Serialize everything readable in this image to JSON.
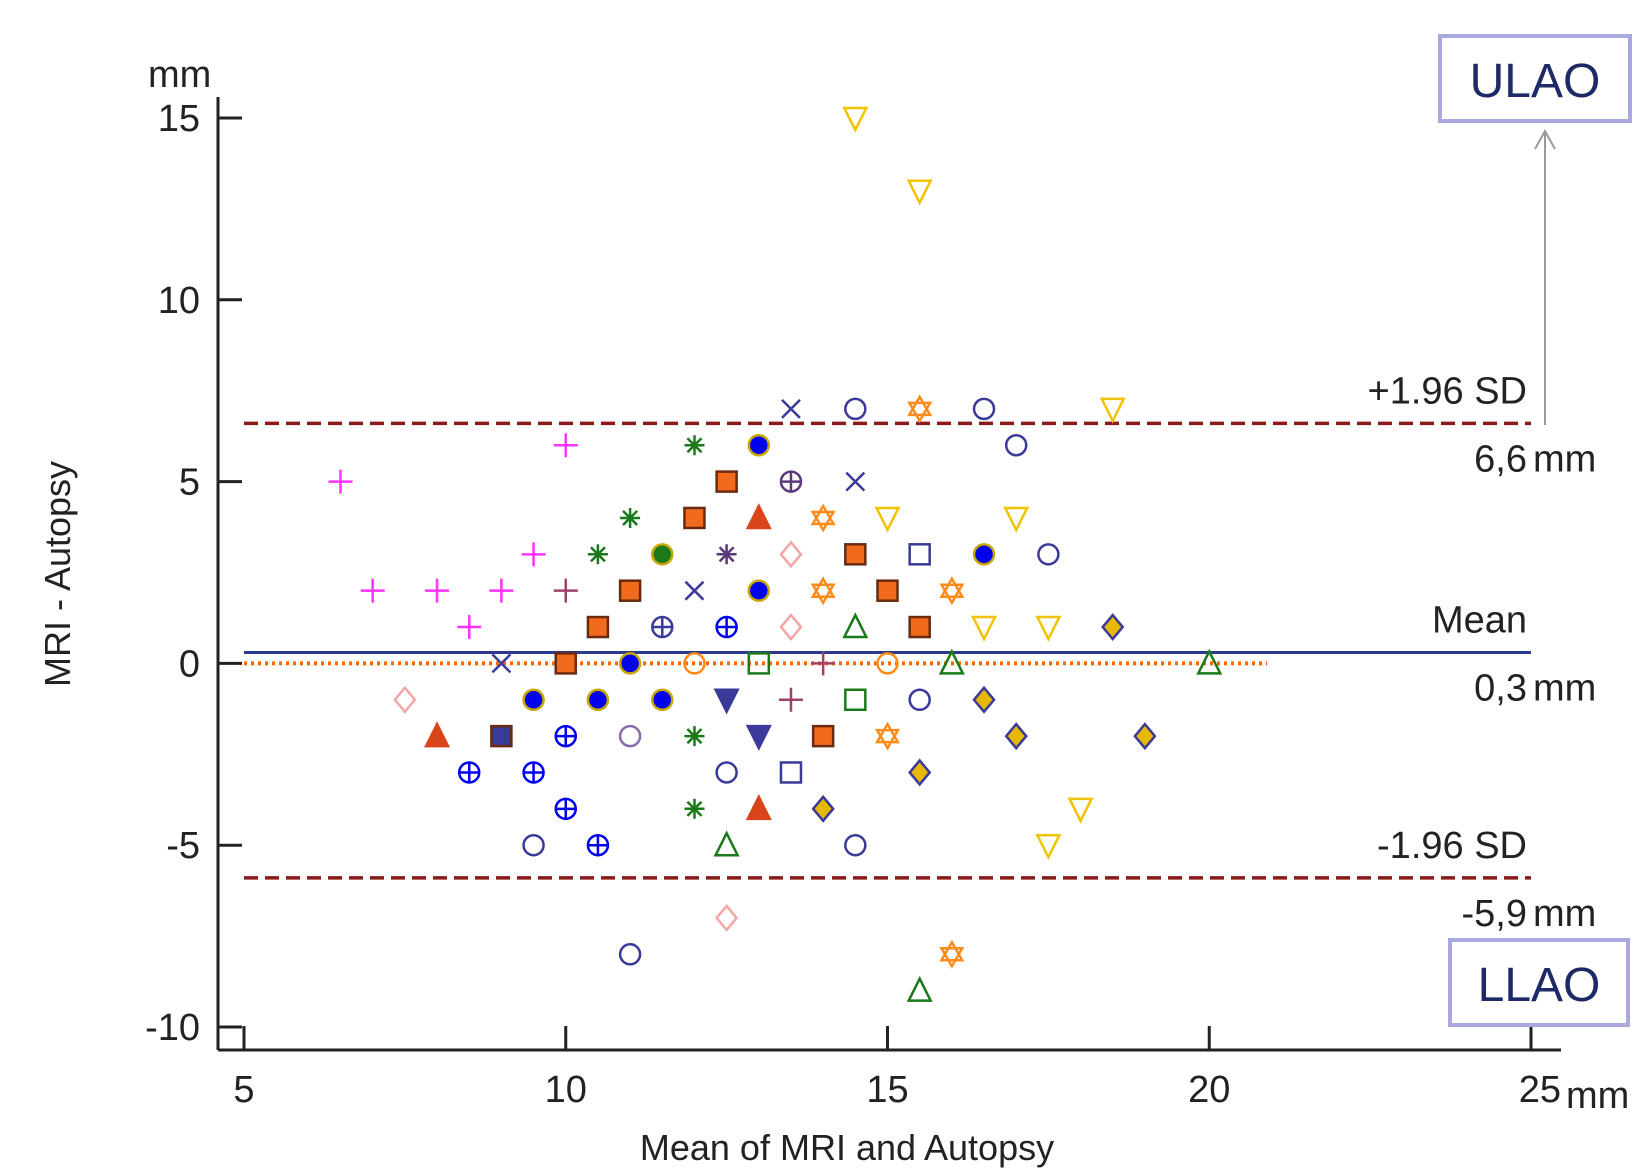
{
  "chart_data": {
    "type": "scatter",
    "title": "",
    "xlabel": "Mean of MRI and Autopsy",
    "ylabel": "MRI - Autopsy",
    "x_unit": "mm",
    "y_unit": "mm",
    "xlim": [
      5,
      25
    ],
    "ylim": [
      -10,
      15
    ],
    "x_ticks": [
      "5",
      "10",
      "15",
      "20",
      "25"
    ],
    "y_ticks": [
      "15",
      "10",
      "5",
      "0",
      "-5",
      "-10"
    ],
    "grid": false,
    "reference_lines": [
      {
        "name": "+1.96 SD",
        "value": 6.6,
        "value_label": "6,6",
        "unit": "mm",
        "style": "dashed",
        "color": "#8b1a1a"
      },
      {
        "name": "Mean",
        "value": 0.3,
        "value_label": "0,3",
        "unit": "mm",
        "style": "solid",
        "color": "#2b3a8c"
      },
      {
        "name": "-1.96 SD",
        "value": -5.9,
        "value_label": "-5,9",
        "unit": "mm",
        "style": "dashed",
        "color": "#8b1a1a"
      },
      {
        "name": "",
        "value": 0,
        "value_label": "",
        "unit": "",
        "style": "dotted",
        "color": "#ff6600"
      }
    ],
    "annotations": [
      {
        "text": "ULAO",
        "color": "#1d2a66",
        "border": "#a9a9e0"
      },
      {
        "text": "LLAO",
        "color": "#1d2a66",
        "border": "#a9a9e0"
      }
    ],
    "points": [
      {
        "x": 14.5,
        "y": 15,
        "marker": "triangle-down",
        "color": "#f2c300",
        "filled": false
      },
      {
        "x": 15.5,
        "y": 13,
        "marker": "triangle-down",
        "color": "#f2c300",
        "filled": false
      },
      {
        "x": 13.5,
        "y": 7,
        "marker": "x",
        "color": "#3a3a9a",
        "filled": false
      },
      {
        "x": 14.5,
        "y": 7,
        "marker": "circle",
        "color": "#3a3a9a",
        "filled": false
      },
      {
        "x": 15.5,
        "y": 7,
        "marker": "star",
        "color": "#ff8c1a",
        "filled": false
      },
      {
        "x": 16.5,
        "y": 7,
        "marker": "circle",
        "color": "#3a3a9a",
        "filled": false
      },
      {
        "x": 18.5,
        "y": 7,
        "marker": "triangle-down",
        "color": "#f2c300",
        "filled": false
      },
      {
        "x": 10,
        "y": 6,
        "marker": "plus",
        "color": "#ff33ff",
        "filled": false
      },
      {
        "x": 12,
        "y": 6,
        "marker": "asterisk",
        "color": "#1a7a1a",
        "filled": false
      },
      {
        "x": 13,
        "y": 6,
        "marker": "circle",
        "color": "#0000ee",
        "filled": true
      },
      {
        "x": 17,
        "y": 6,
        "marker": "circle",
        "color": "#3a3a9a",
        "filled": false
      },
      {
        "x": 6.5,
        "y": 5,
        "marker": "plus",
        "color": "#ff33ff",
        "filled": false
      },
      {
        "x": 12.5,
        "y": 5,
        "marker": "square",
        "color": "#f26b1d",
        "filled": true
      },
      {
        "x": 13.5,
        "y": 5,
        "marker": "circle-plus",
        "color": "#5a3a7a",
        "filled": false
      },
      {
        "x": 14.5,
        "y": 5,
        "marker": "x",
        "color": "#3a3a9a",
        "filled": false
      },
      {
        "x": 11,
        "y": 4,
        "marker": "asterisk",
        "color": "#1a7a1a",
        "filled": false
      },
      {
        "x": 12,
        "y": 4,
        "marker": "square",
        "color": "#f26b1d",
        "filled": true
      },
      {
        "x": 13,
        "y": 4,
        "marker": "triangle",
        "color": "#d9441a",
        "filled": true
      },
      {
        "x": 14,
        "y": 4,
        "marker": "star",
        "color": "#ff8c1a",
        "filled": false
      },
      {
        "x": 15,
        "y": 4,
        "marker": "triangle-down",
        "color": "#f2c300",
        "filled": false
      },
      {
        "x": 17,
        "y": 4,
        "marker": "triangle-down",
        "color": "#f2c300",
        "filled": false
      },
      {
        "x": 9.5,
        "y": 3,
        "marker": "plus",
        "color": "#ff33ff",
        "filled": false
      },
      {
        "x": 10.5,
        "y": 3,
        "marker": "asterisk",
        "color": "#1a7a1a",
        "filled": false
      },
      {
        "x": 11.5,
        "y": 3,
        "marker": "circle",
        "color": "#1a7a1a",
        "filled": true
      },
      {
        "x": 12.5,
        "y": 3,
        "marker": "asterisk",
        "color": "#5a3a7a",
        "filled": false
      },
      {
        "x": 13.5,
        "y": 3,
        "marker": "diamond",
        "color": "#f4a6a6",
        "filled": false
      },
      {
        "x": 14.5,
        "y": 3,
        "marker": "square",
        "color": "#f26b1d",
        "filled": true
      },
      {
        "x": 15.5,
        "y": 3,
        "marker": "square",
        "color": "#3a3a9a",
        "filled": false
      },
      {
        "x": 16.5,
        "y": 3,
        "marker": "circle",
        "color": "#0000ee",
        "filled": true
      },
      {
        "x": 17.5,
        "y": 3,
        "marker": "circle",
        "color": "#3a3a9a",
        "filled": false
      },
      {
        "x": 7,
        "y": 2,
        "marker": "plus",
        "color": "#ff33ff",
        "filled": false
      },
      {
        "x": 8,
        "y": 2,
        "marker": "plus",
        "color": "#ff33ff",
        "filled": false
      },
      {
        "x": 9,
        "y": 2,
        "marker": "plus",
        "color": "#ff33ff",
        "filled": false
      },
      {
        "x": 10,
        "y": 2,
        "marker": "plus",
        "color": "#a0406a",
        "filled": false
      },
      {
        "x": 11,
        "y": 2,
        "marker": "square",
        "color": "#f26b1d",
        "filled": true
      },
      {
        "x": 12,
        "y": 2,
        "marker": "x",
        "color": "#3a3a9a",
        "filled": false
      },
      {
        "x": 13,
        "y": 2,
        "marker": "circle",
        "color": "#0000ee",
        "filled": true
      },
      {
        "x": 14,
        "y": 2,
        "marker": "star",
        "color": "#ff8c1a",
        "filled": false
      },
      {
        "x": 15,
        "y": 2,
        "marker": "square",
        "color": "#f26b1d",
        "filled": true
      },
      {
        "x": 16,
        "y": 2,
        "marker": "star",
        "color": "#ff8c1a",
        "filled": false
      },
      {
        "x": 8.5,
        "y": 1,
        "marker": "plus",
        "color": "#ff33ff",
        "filled": false
      },
      {
        "x": 10.5,
        "y": 1,
        "marker": "square",
        "color": "#f26b1d",
        "filled": true
      },
      {
        "x": 11.5,
        "y": 1,
        "marker": "circle-plus",
        "color": "#3a3a9a",
        "filled": false
      },
      {
        "x": 12.5,
        "y": 1,
        "marker": "circle-plus",
        "color": "#0000ee",
        "filled": false
      },
      {
        "x": 13.5,
        "y": 1,
        "marker": "diamond",
        "color": "#f4a6a6",
        "filled": false
      },
      {
        "x": 14.5,
        "y": 1,
        "marker": "triangle",
        "color": "#1a7a1a",
        "filled": false
      },
      {
        "x": 15.5,
        "y": 1,
        "marker": "square",
        "color": "#f26b1d",
        "filled": true
      },
      {
        "x": 16.5,
        "y": 1,
        "marker": "triangle-down",
        "color": "#f2c300",
        "filled": false
      },
      {
        "x": 17.5,
        "y": 1,
        "marker": "triangle-down",
        "color": "#f2c300",
        "filled": false
      },
      {
        "x": 18.5,
        "y": 1,
        "marker": "diamond",
        "color": "#e6b800",
        "filled": true
      },
      {
        "x": 9,
        "y": 0,
        "marker": "x",
        "color": "#3a3a9a",
        "filled": false
      },
      {
        "x": 10,
        "y": 0,
        "marker": "square",
        "color": "#f26b1d",
        "filled": true
      },
      {
        "x": 11,
        "y": 0,
        "marker": "circle",
        "color": "#0000ee",
        "filled": true
      },
      {
        "x": 12,
        "y": 0,
        "marker": "circle",
        "color": "#ff8c1a",
        "filled": false
      },
      {
        "x": 13,
        "y": 0,
        "marker": "square",
        "color": "#1a7a1a",
        "filled": false
      },
      {
        "x": 14,
        "y": 0,
        "marker": "plus",
        "color": "#a0406a",
        "filled": false
      },
      {
        "x": 15,
        "y": 0,
        "marker": "circle",
        "color": "#ff8c1a",
        "filled": false
      },
      {
        "x": 16,
        "y": 0,
        "marker": "triangle",
        "color": "#1a7a1a",
        "filled": false
      },
      {
        "x": 20,
        "y": 0,
        "marker": "triangle",
        "color": "#1a7a1a",
        "filled": false
      },
      {
        "x": 7.5,
        "y": -1,
        "marker": "diamond",
        "color": "#f4a6a6",
        "filled": false
      },
      {
        "x": 9.5,
        "y": -1,
        "marker": "circle",
        "color": "#0000ee",
        "filled": true
      },
      {
        "x": 10.5,
        "y": -1,
        "marker": "circle",
        "color": "#0000ee",
        "filled": true
      },
      {
        "x": 11.5,
        "y": -1,
        "marker": "circle",
        "color": "#0000ee",
        "filled": true
      },
      {
        "x": 12.5,
        "y": -1,
        "marker": "triangle-down",
        "color": "#3a3a9a",
        "filled": true
      },
      {
        "x": 13.5,
        "y": -1,
        "marker": "plus",
        "color": "#a0406a",
        "filled": false
      },
      {
        "x": 14.5,
        "y": -1,
        "marker": "square",
        "color": "#1a7a1a",
        "filled": false
      },
      {
        "x": 15.5,
        "y": -1,
        "marker": "circle",
        "color": "#3a3a9a",
        "filled": false
      },
      {
        "x": 16.5,
        "y": -1,
        "marker": "diamond",
        "color": "#e6b800",
        "filled": true
      },
      {
        "x": 8,
        "y": -2,
        "marker": "triangle",
        "color": "#d9441a",
        "filled": true
      },
      {
        "x": 9,
        "y": -2,
        "marker": "square",
        "color": "#3a3a9a",
        "filled": true
      },
      {
        "x": 10,
        "y": -2,
        "marker": "circle-plus",
        "color": "#0000ee",
        "filled": false
      },
      {
        "x": 11,
        "y": -2,
        "marker": "circle",
        "color": "#8a6aaa",
        "filled": false
      },
      {
        "x": 12,
        "y": -2,
        "marker": "asterisk",
        "color": "#1a7a1a",
        "filled": false
      },
      {
        "x": 13,
        "y": -2,
        "marker": "triangle-down",
        "color": "#3a3a9a",
        "filled": true
      },
      {
        "x": 14,
        "y": -2,
        "marker": "square",
        "color": "#f26b1d",
        "filled": true
      },
      {
        "x": 15,
        "y": -2,
        "marker": "star",
        "color": "#ff8c1a",
        "filled": false
      },
      {
        "x": 17,
        "y": -2,
        "marker": "diamond",
        "color": "#e6b800",
        "filled": true
      },
      {
        "x": 19,
        "y": -2,
        "marker": "diamond",
        "color": "#e6b800",
        "filled": true
      },
      {
        "x": 8.5,
        "y": -3,
        "marker": "circle-plus",
        "color": "#0000ee",
        "filled": false
      },
      {
        "x": 9.5,
        "y": -3,
        "marker": "circle-plus",
        "color": "#0000ee",
        "filled": false
      },
      {
        "x": 12.5,
        "y": -3,
        "marker": "circle",
        "color": "#3a3a9a",
        "filled": false
      },
      {
        "x": 13.5,
        "y": -3,
        "marker": "square",
        "color": "#3a3a9a",
        "filled": false
      },
      {
        "x": 15.5,
        "y": -3,
        "marker": "diamond",
        "color": "#e6b800",
        "filled": true
      },
      {
        "x": 10,
        "y": -4,
        "marker": "circle-plus",
        "color": "#0000ee",
        "filled": false
      },
      {
        "x": 12,
        "y": -4,
        "marker": "asterisk",
        "color": "#1a7a1a",
        "filled": false
      },
      {
        "x": 13,
        "y": -4,
        "marker": "triangle",
        "color": "#d9441a",
        "filled": true
      },
      {
        "x": 14,
        "y": -4,
        "marker": "diamond",
        "color": "#e6b800",
        "filled": true
      },
      {
        "x": 18,
        "y": -4,
        "marker": "triangle-down",
        "color": "#f2c300",
        "filled": false
      },
      {
        "x": 9.5,
        "y": -5,
        "marker": "circle",
        "color": "#3a3a9a",
        "filled": false
      },
      {
        "x": 10.5,
        "y": -5,
        "marker": "circle-plus",
        "color": "#0000ee",
        "filled": false
      },
      {
        "x": 12.5,
        "y": -5,
        "marker": "triangle",
        "color": "#1a7a1a",
        "filled": false
      },
      {
        "x": 14.5,
        "y": -5,
        "marker": "circle",
        "color": "#3a3a9a",
        "filled": false
      },
      {
        "x": 17.5,
        "y": -5,
        "marker": "triangle-down",
        "color": "#f2c300",
        "filled": false
      },
      {
        "x": 12.5,
        "y": -7,
        "marker": "diamond",
        "color": "#f4a6a6",
        "filled": false
      },
      {
        "x": 11,
        "y": -8,
        "marker": "circle",
        "color": "#3a3a9a",
        "filled": false
      },
      {
        "x": 16,
        "y": -8,
        "marker": "star",
        "color": "#ff8c1a",
        "filled": false
      },
      {
        "x": 15.5,
        "y": -9,
        "marker": "triangle",
        "color": "#1a7a1a",
        "filled": false
      }
    ]
  }
}
